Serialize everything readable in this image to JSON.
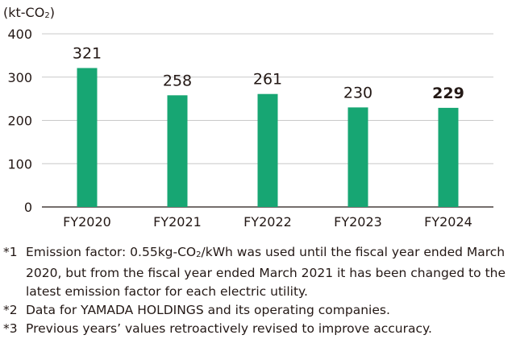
{
  "chart_data": {
    "type": "bar",
    "unit_label": "(kt-CO",
    "unit_sub": "2",
    "unit_close": ")",
    "categories": [
      "FY2020",
      "FY2021",
      "FY2022",
      "FY2023",
      "FY2024"
    ],
    "values": [
      321,
      258,
      261,
      230,
      229
    ],
    "data_labels": [
      "321",
      "258",
      "261",
      "230",
      "229"
    ],
    "highlight_index": 4,
    "y_ticks": [
      0,
      100,
      200,
      300,
      400
    ],
    "ylim": [
      0,
      400
    ],
    "grid": true,
    "bar_color": "#17a673"
  },
  "notes": [
    {
      "mark": "*1",
      "pre": "Emission factor: 0.55kg-CO",
      "sub": "2",
      "post": "/kWh was used until the fiscal year ended March 2020, but from the fiscal year ended March 2021 it has been changed to the latest emission factor for each electric utility."
    },
    {
      "mark": "*2",
      "pre": "Data for YAMADA HOLDINGS and its operating companies.",
      "sub": "",
      "post": ""
    },
    {
      "mark": "*3",
      "pre": "Previous years’ values retroactively revised to improve accuracy.",
      "sub": "",
      "post": ""
    }
  ]
}
